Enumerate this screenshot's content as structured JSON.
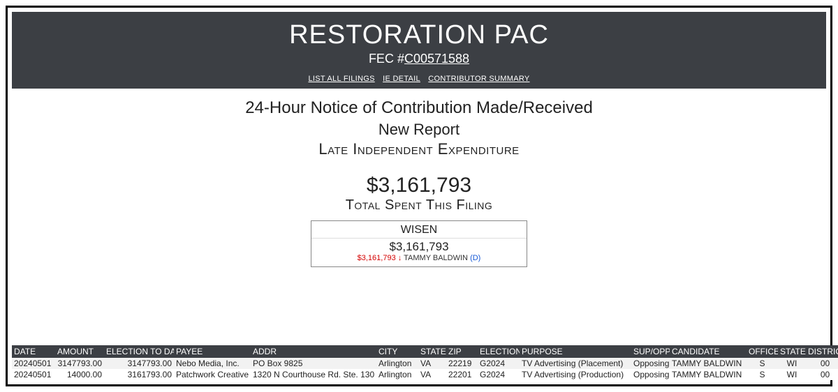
{
  "header": {
    "org_name": "RESTORATION PAC",
    "fec_prefix": "FEC #",
    "fec_id": "C00571588",
    "nav": {
      "list_filings": "LIST ALL FILINGS",
      "ie_detail": "IE DETAIL",
      "contrib_summary": "CONTRIBUTOR SUMMARY"
    }
  },
  "summary": {
    "notice_type": "24-Hour Notice of Contribution Made/Received",
    "report_status": "New Report",
    "late_ie_label": "Late Independent Expenditure",
    "total_amount": "$3,161,793",
    "total_label": "Total Spent This Filing"
  },
  "race": {
    "code": "WISEN",
    "amount": "$3,161,793",
    "detail_amount": "$3,161,793",
    "arrow": "↓",
    "candidate": "TAMMY BALDWIN",
    "party": "(D)"
  },
  "table": {
    "headers": {
      "date": "DATE",
      "amount": "AMOUNT",
      "election_to_date": "ELECTION TO DATE",
      "payee": "PAYEE",
      "addr": "ADDR",
      "city": "CITY",
      "state": "STATE",
      "zip": "ZIP",
      "election": "ELECTION",
      "purpose": "PURPOSE",
      "supopp": "SUP/OPP",
      "candidate": "CANDIDATE",
      "office": "OFFICE",
      "state2": "STATE",
      "district": "DISTRICT"
    },
    "rows": [
      {
        "date": "20240501",
        "amount": "3147793.00",
        "election_to_date": "3147793.00",
        "payee": "Nebo Media, Inc.",
        "addr": "PO Box 9825",
        "city": "Arlington",
        "state": "VA",
        "zip": "22219",
        "election": "G2024",
        "purpose": "TV Advertising (Placement)",
        "supopp": "Opposing",
        "candidate": "TAMMY BALDWIN",
        "office": "S",
        "state2": "WI",
        "district": "00"
      },
      {
        "date": "20240501",
        "amount": "14000.00",
        "election_to_date": "3161793.00",
        "payee": "Patchwork Creative",
        "addr": "1320 N Courthouse Rd. Ste. 130",
        "city": "Arlington",
        "state": "VA",
        "zip": "22201",
        "election": "G2024",
        "purpose": "TV Advertising (Production)",
        "supopp": "Opposing",
        "candidate": "TAMMY BALDWIN",
        "office": "S",
        "state2": "WI",
        "district": "00"
      }
    ]
  },
  "styles": {
    "band_bg": "#3c3f44",
    "opposing_color": "#d40000",
    "party_color": "#1558d6"
  }
}
